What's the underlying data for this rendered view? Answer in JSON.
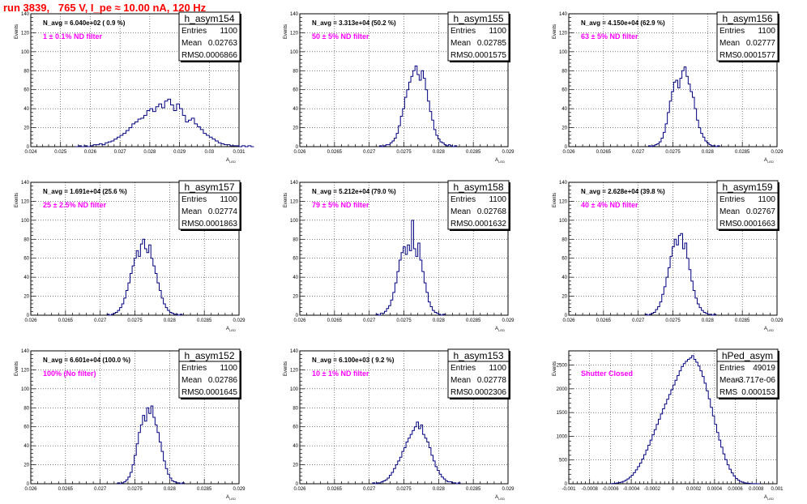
{
  "page_title": "run 3839,   765 V, I_pe ≈ 10.00 nA, 120 Hz",
  "chart_data": [
    {
      "type": "histogram",
      "hist_name": "h_asym154",
      "ylabel": "Events",
      "xlabel": "A",
      "xlabel_sub": "LED",
      "nav_text": "N_avg = 6.040e+02 ( 0.9 %)",
      "filter_label": "1 ± 0.1% ND filter",
      "stats": [
        {
          "label": "Entries",
          "value": "1100"
        },
        {
          "label": "Mean",
          "value": "0.02763"
        },
        {
          "label": "RMS",
          "value": "0.0006866"
        }
      ],
      "xlim": [
        0.024,
        0.031
      ],
      "ylim": [
        0,
        140
      ],
      "xticks": [
        0.024,
        0.025,
        0.026,
        0.027,
        0.028,
        0.029,
        0.03,
        0.031
      ],
      "xtick_labels": [
        "0.024",
        "0.025",
        "0.026",
        "0.027",
        "0.028",
        "0.029",
        "0.03",
        "0.031"
      ],
      "yticks": [
        0,
        20,
        40,
        60,
        80,
        100,
        120,
        140
      ],
      "ytick_labels": [
        "0",
        "20",
        "40",
        "60",
        "80",
        "100",
        "120",
        "140"
      ],
      "bins": {
        "lo": 0.0255,
        "width": 0.0001,
        "values": [
          0,
          1,
          0,
          1,
          0,
          1,
          2,
          2,
          3,
          2,
          4,
          5,
          6,
          8,
          10,
          12,
          14,
          17,
          20,
          24,
          26,
          29,
          30,
          33,
          38,
          40,
          37,
          42,
          45,
          41,
          48,
          50,
          44,
          38,
          45,
          40,
          33,
          26,
          28,
          30,
          24,
          21,
          18,
          14,
          12,
          10,
          8,
          6,
          4,
          3,
          2,
          2,
          1,
          1,
          1,
          0,
          1,
          0,
          1,
          0
        ]
      }
    },
    {
      "type": "histogram",
      "hist_name": "h_asym155",
      "ylabel": "Events",
      "xlabel": "A",
      "xlabel_sub": "LED",
      "nav_text": "N_avg = 3.313e+04 (50.2 %)",
      "filter_label": "50 ± 5% ND filter",
      "stats": [
        {
          "label": "Entries",
          "value": "1100"
        },
        {
          "label": "Mean",
          "value": "0.02785"
        },
        {
          "label": "RMS",
          "value": "0.0001575"
        }
      ],
      "xlim": [
        0.026,
        0.029
      ],
      "ylim": [
        0,
        140
      ],
      "xticks": [
        0.026,
        0.0265,
        0.027,
        0.0275,
        0.028,
        0.0285,
        0.029
      ],
      "xtick_labels": [
        "0.026",
        "0.0265",
        "0.027",
        "0.0275",
        "0.028",
        "0.0285",
        "0.029"
      ],
      "yticks": [
        0,
        20,
        40,
        60,
        80,
        100,
        120,
        140
      ],
      "ytick_labels": [
        "0",
        "20",
        "40",
        "60",
        "80",
        "100",
        "120",
        "140"
      ],
      "bins": {
        "lo": 0.02715,
        "width": 3e-05,
        "values": [
          1,
          0,
          1,
          2,
          2,
          4,
          6,
          9,
          14,
          22,
          32,
          40,
          52,
          60,
          68,
          74,
          80,
          85,
          76,
          70,
          80,
          72,
          60,
          48,
          37,
          28,
          18,
          12,
          8,
          5,
          4,
          2,
          1,
          2,
          1,
          0,
          1
        ]
      }
    },
    {
      "type": "histogram",
      "hist_name": "h_asym156",
      "ylabel": "Events",
      "xlabel": "A",
      "xlabel_sub": "LED",
      "nav_text": "N_avg = 4.150e+04 (62.9 %)",
      "filter_label": "63 ± 5% ND filter",
      "stats": [
        {
          "label": "Entries",
          "value": "1100"
        },
        {
          "label": "Mean",
          "value": "0.02777"
        },
        {
          "label": "RMS",
          "value": "0.0001577"
        }
      ],
      "xlim": [
        0.026,
        0.029
      ],
      "ylim": [
        0,
        140
      ],
      "xticks": [
        0.026,
        0.0265,
        0.027,
        0.0275,
        0.028,
        0.0285,
        0.029
      ],
      "xtick_labels": [
        "0.026",
        "0.0265",
        "0.027",
        "0.0275",
        "0.028",
        "0.0285",
        "0.029"
      ],
      "yticks": [
        0,
        20,
        40,
        60,
        80,
        100,
        120,
        140
      ],
      "ytick_labels": [
        "0",
        "20",
        "40",
        "60",
        "80",
        "100",
        "120",
        "140"
      ],
      "bins": {
        "lo": 0.02715,
        "width": 3e-05,
        "values": [
          1,
          0,
          1,
          2,
          3,
          5,
          9,
          15,
          24,
          36,
          48,
          58,
          68,
          70,
          62,
          72,
          80,
          84,
          74,
          66,
          58,
          52,
          40,
          28,
          20,
          14,
          10,
          6,
          4,
          2,
          1,
          1,
          0,
          1
        ]
      }
    },
    {
      "type": "histogram",
      "hist_name": "h_asym157",
      "ylabel": "Events",
      "xlabel": "A",
      "xlabel_sub": "LED",
      "nav_text": "N_avg = 1.691e+04 (25.6 %)",
      "filter_label": "25 ± 2.5% ND filter",
      "stats": [
        {
          "label": "Entries",
          "value": "1100"
        },
        {
          "label": "Mean",
          "value": "0.02774"
        },
        {
          "label": "RMS",
          "value": "0.0001863"
        }
      ],
      "xlim": [
        0.026,
        0.029
      ],
      "ylim": [
        0,
        140
      ],
      "xticks": [
        0.026,
        0.0265,
        0.027,
        0.0275,
        0.028,
        0.0285,
        0.029
      ],
      "xtick_labels": [
        "0.026",
        "0.0265",
        "0.027",
        "0.0275",
        "0.028",
        "0.0285",
        "0.029"
      ],
      "yticks": [
        0,
        20,
        40,
        60,
        80,
        100,
        120,
        140
      ],
      "ytick_labels": [
        "0",
        "20",
        "40",
        "60",
        "80",
        "100",
        "120",
        "140"
      ],
      "bins": {
        "lo": 0.0271,
        "width": 3e-05,
        "values": [
          1,
          0,
          1,
          2,
          3,
          5,
          8,
          12,
          18,
          26,
          34,
          44,
          52,
          60,
          68,
          62,
          75,
          80,
          70,
          66,
          74,
          60,
          52,
          44,
          34,
          26,
          18,
          12,
          8,
          5,
          3,
          2,
          1,
          1,
          0,
          1
        ]
      }
    },
    {
      "type": "histogram",
      "hist_name": "h_asym158",
      "ylabel": "Events",
      "xlabel": "A",
      "xlabel_sub": "LED",
      "nav_text": "N_avg = 5.212e+04 (79.0 %)",
      "filter_label": "79 ± 5% ND filter",
      "stats": [
        {
          "label": "Entries",
          "value": "1100"
        },
        {
          "label": "Mean",
          "value": "0.02768"
        },
        {
          "label": "RMS",
          "value": "0.0001632"
        }
      ],
      "xlim": [
        0.026,
        0.029
      ],
      "ylim": [
        0,
        140
      ],
      "xticks": [
        0.026,
        0.0265,
        0.027,
        0.0275,
        0.028,
        0.0285,
        0.029
      ],
      "xtick_labels": [
        "0.026",
        "0.0265",
        "0.027",
        "0.0275",
        "0.028",
        "0.0285",
        "0.029"
      ],
      "yticks": [
        0,
        20,
        40,
        60,
        80,
        100,
        120,
        140
      ],
      "ytick_labels": [
        "0",
        "20",
        "40",
        "60",
        "80",
        "100",
        "120",
        "140"
      ],
      "bins": {
        "lo": 0.0271,
        "width": 3e-05,
        "values": [
          1,
          0,
          2,
          2,
          4,
          7,
          10,
          16,
          24,
          34,
          46,
          58,
          66,
          72,
          64,
          74,
          68,
          100,
          70,
          62,
          76,
          58,
          46,
          34,
          24,
          14,
          9,
          5,
          3,
          2,
          1,
          0,
          1
        ]
      }
    },
    {
      "type": "histogram",
      "hist_name": "h_asym159",
      "ylabel": "Events",
      "xlabel": "A",
      "xlabel_sub": "LED",
      "nav_text": "N_avg = 2.628e+04 (39.8 %)",
      "filter_label": "40 ± 4% ND filter",
      "stats": [
        {
          "label": "Entries",
          "value": "1100"
        },
        {
          "label": "Mean",
          "value": "0.02767"
        },
        {
          "label": "RMS",
          "value": "0.0001663"
        }
      ],
      "xlim": [
        0.026,
        0.029
      ],
      "ylim": [
        0,
        140
      ],
      "xticks": [
        0.026,
        0.0265,
        0.027,
        0.0275,
        0.028,
        0.0285,
        0.029
      ],
      "xtick_labels": [
        "0.026",
        "0.0265",
        "0.027",
        "0.0275",
        "0.028",
        "0.0285",
        "0.029"
      ],
      "yticks": [
        0,
        20,
        40,
        60,
        80,
        100,
        120,
        140
      ],
      "ytick_labels": [
        "0",
        "20",
        "40",
        "60",
        "80",
        "100",
        "120",
        "140"
      ],
      "bins": {
        "lo": 0.0271,
        "width": 3e-05,
        "values": [
          1,
          0,
          1,
          2,
          3,
          6,
          9,
          14,
          22,
          30,
          40,
          50,
          62,
          72,
          80,
          74,
          84,
          86,
          70,
          76,
          60,
          48,
          36,
          26,
          18,
          12,
          8,
          5,
          3,
          2,
          1,
          1,
          0,
          1
        ]
      }
    },
    {
      "type": "histogram",
      "hist_name": "h_asym152",
      "ylabel": "Events",
      "xlabel": "A",
      "xlabel_sub": "LED",
      "nav_text": "N_avg = 6.601e+04 (100.0 %)",
      "filter_label": "100% (No filter)",
      "stats": [
        {
          "label": "Entries",
          "value": "1100"
        },
        {
          "label": "Mean",
          "value": "0.02786"
        },
        {
          "label": "RMS",
          "value": "0.0001645"
        }
      ],
      "xlim": [
        0.026,
        0.029
      ],
      "ylim": [
        0,
        140
      ],
      "xticks": [
        0.026,
        0.0265,
        0.027,
        0.0275,
        0.028,
        0.0285,
        0.029
      ],
      "xtick_labels": [
        "0.026",
        "0.0265",
        "0.027",
        "0.0275",
        "0.028",
        "0.0285",
        "0.029"
      ],
      "yticks": [
        0,
        20,
        40,
        60,
        80,
        100,
        120,
        140
      ],
      "ytick_labels": [
        "0",
        "20",
        "40",
        "60",
        "80",
        "100",
        "120",
        "140"
      ],
      "bins": {
        "lo": 0.02725,
        "width": 3e-05,
        "values": [
          1,
          0,
          1,
          2,
          4,
          7,
          12,
          20,
          30,
          42,
          54,
          62,
          72,
          66,
          80,
          74,
          82,
          70,
          62,
          54,
          44,
          34,
          24,
          16,
          10,
          6,
          3,
          2,
          1,
          1,
          0,
          1
        ]
      }
    },
    {
      "type": "histogram",
      "hist_name": "h_asym153",
      "ylabel": "Events",
      "xlabel": "A",
      "xlabel_sub": "LED",
      "nav_text": "N_avg = 6.100e+03 ( 9.2 %)",
      "filter_label": "10 ± 1% ND filter",
      "stats": [
        {
          "label": "Entries",
          "value": "1100"
        },
        {
          "label": "Mean",
          "value": "0.02778"
        },
        {
          "label": "RMS",
          "value": "0.0002306"
        }
      ],
      "xlim": [
        0.026,
        0.029
      ],
      "ylim": [
        0,
        140
      ],
      "xticks": [
        0.026,
        0.0265,
        0.027,
        0.0275,
        0.028,
        0.0285,
        0.029
      ],
      "xtick_labels": [
        "0.026",
        "0.0265",
        "0.027",
        "0.0275",
        "0.028",
        "0.0285",
        "0.029"
      ],
      "yticks": [
        0,
        20,
        40,
        60,
        80,
        100,
        120,
        140
      ],
      "ytick_labels": [
        "0",
        "20",
        "40",
        "60",
        "80",
        "100",
        "120",
        "140"
      ],
      "bins": {
        "lo": 0.02705,
        "width": 3e-05,
        "values": [
          1,
          0,
          1,
          1,
          2,
          3,
          4,
          6,
          9,
          12,
          16,
          20,
          24,
          28,
          34,
          38,
          44,
          48,
          52,
          56,
          60,
          65,
          58,
          62,
          52,
          48,
          44,
          38,
          30,
          24,
          18,
          14,
          10,
          7,
          5,
          3,
          2,
          2,
          1,
          1,
          0,
          1
        ]
      }
    },
    {
      "type": "histogram",
      "hist_name": "hPed_asym",
      "ylabel": "Events",
      "xlabel": "A",
      "xlabel_sub": "LED",
      "nav_text": "",
      "filter_label": "Shutter Closed",
      "stats": [
        {
          "label": "Entries",
          "value": "49019"
        },
        {
          "label": "Mean",
          "value": "-3.717e-06"
        },
        {
          "label": "RMS",
          "value": "0.000153"
        }
      ],
      "xlim": [
        -0.001,
        0.001
      ],
      "ylim": [
        0,
        2800
      ],
      "xticks": [
        -0.001,
        -0.0008,
        -0.0006,
        -0.0004,
        -0.0002,
        0,
        0.0002,
        0.0004,
        0.0006,
        0.0008,
        0.001
      ],
      "xtick_labels": [
        "-0.001",
        "-0.0008",
        "-0.0006",
        "-0.0004",
        "-0.0002",
        "0",
        "0.0002",
        "0.0004",
        "0.0006",
        "0.0008",
        "0.001"
      ],
      "yticks": [
        0,
        500,
        1000,
        1500,
        2000,
        2500
      ],
      "ytick_labels": [
        "0",
        "500",
        "1000",
        "1500",
        "2000",
        "2500"
      ],
      "bins": {
        "lo": -0.0006,
        "width": 2e-05,
        "values": [
          3,
          6,
          10,
          16,
          24,
          36,
          52,
          74,
          102,
          138,
          180,
          232,
          292,
          360,
          436,
          520,
          612,
          710,
          812,
          920,
          1030,
          1140,
          1250,
          1360,
          1470,
          1580,
          1680,
          1780,
          1880,
          1980,
          2080,
          2180,
          2280,
          2380,
          2470,
          2530,
          2580,
          2620,
          2650,
          2700,
          2620,
          2560,
          2480,
          2380,
          2260,
          2120,
          1960,
          1790,
          1610,
          1430,
          1250,
          1080,
          920,
          770,
          630,
          508,
          400,
          306,
          228,
          164,
          114,
          76,
          50,
          32,
          20,
          12,
          8,
          5,
          3,
          2,
          1,
          1
        ]
      }
    }
  ]
}
